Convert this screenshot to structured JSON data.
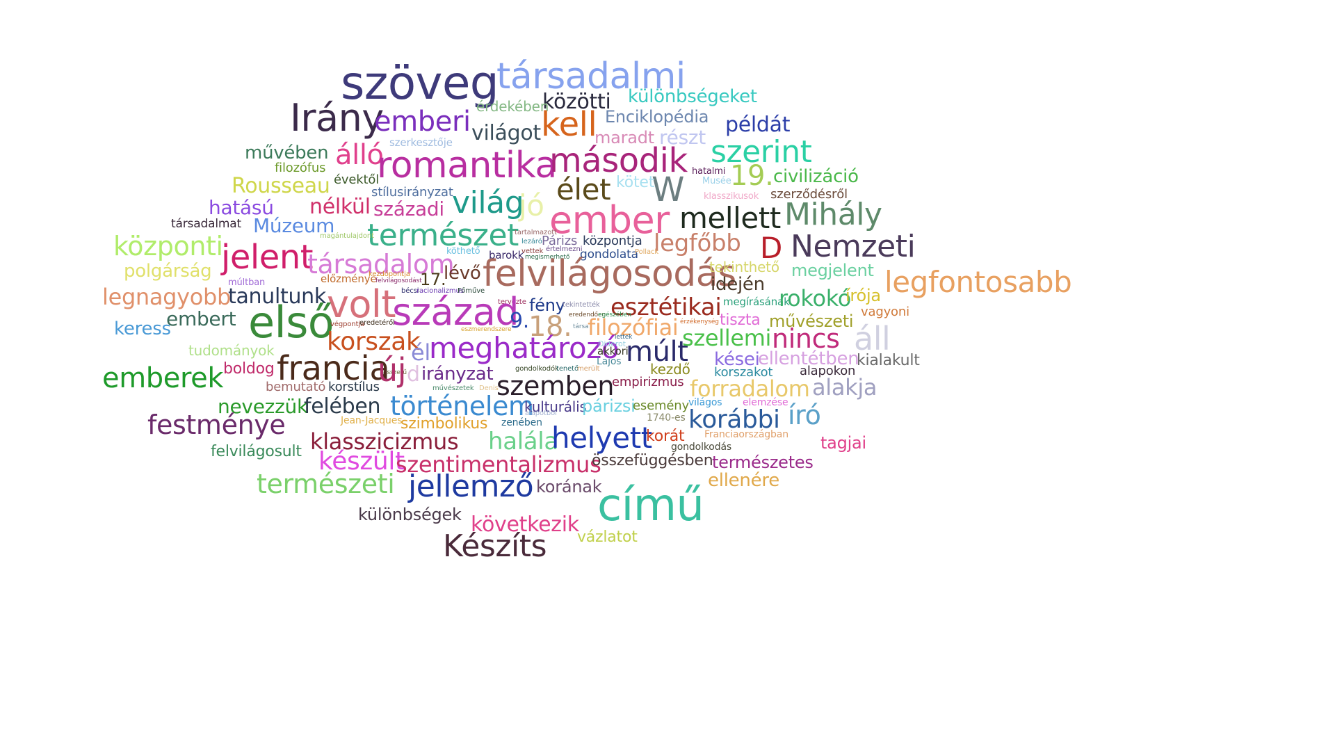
{
  "word_cloud": {
    "words": [
      {
        "text": "szöveg",
        "color": "#3e3a7a"
      },
      {
        "text": "társadalmi",
        "color": "#86a2ee"
      },
      {
        "text": "közötti",
        "color": "#2a2a3e"
      },
      {
        "text": "különbségeket",
        "color": "#38c9c0"
      },
      {
        "text": "érdekében",
        "color": "#84b884"
      },
      {
        "text": "Irány",
        "color": "#3b2a4a"
      },
      {
        "text": "emberi",
        "color": "#7a2ebc"
      },
      {
        "text": "kell",
        "color": "#d6641c"
      },
      {
        "text": "Enciklopédia",
        "color": "#6c86ae"
      },
      {
        "text": "példát",
        "color": "#2c3ea8"
      },
      {
        "text": "világot",
        "color": "#3b4e5a"
      },
      {
        "text": "maradt",
        "color": "#d88ab6"
      },
      {
        "text": "részt",
        "color": "#c0c6f0"
      },
      {
        "text": "szerkesztője",
        "color": "#a0bce0"
      },
      {
        "text": "művében",
        "color": "#3c7a5a"
      },
      {
        "text": "álló",
        "color": "#e0408c"
      },
      {
        "text": "romantika",
        "color": "#b82ea0"
      },
      {
        "text": "második",
        "color": "#a8247a"
      },
      {
        "text": "szerint",
        "color": "#2ad0a4"
      },
      {
        "text": "filozófus",
        "color": "#6c9a2a"
      },
      {
        "text": "évektől",
        "color": "#3c5a2a"
      },
      {
        "text": "hatalmi",
        "color": "#5a1e5a"
      },
      {
        "text": "19.",
        "color": "#a4cc54"
      },
      {
        "text": "civilizáció",
        "color": "#4ab84a"
      },
      {
        "text": "Rousseau",
        "color": "#cfd64a"
      },
      {
        "text": "W",
        "color": "#6c7e80"
      },
      {
        "text": "élet",
        "color": "#5a4a1a"
      },
      {
        "text": "kötet",
        "color": "#a8e0f0"
      },
      {
        "text": "Musée",
        "color": "#9ad0e8"
      },
      {
        "text": "stílusirányzat",
        "color": "#4e6e9e"
      },
      {
        "text": "klasszikusok",
        "color": "#f0a8c8"
      },
      {
        "text": "szerződésről",
        "color": "#6a4a3a"
      },
      {
        "text": "hatású",
        "color": "#8a4ae0"
      },
      {
        "text": "nélkül",
        "color": "#d0306a"
      },
      {
        "text": "századi",
        "color": "#c73e98"
      },
      {
        "text": "világ",
        "color": "#1e9a8a"
      },
      {
        "text": "jó",
        "color": "#e8f0a8"
      },
      {
        "text": "ember",
        "color": "#e8609a"
      },
      {
        "text": "mellett",
        "color": "#1e2a1e"
      },
      {
        "text": "Mihály",
        "color": "#5e8a6a"
      },
      {
        "text": "társadalmat",
        "color": "#3a2a3a"
      },
      {
        "text": "Múzeum",
        "color": "#5a8ae0"
      },
      {
        "text": "természet",
        "color": "#3ab08a"
      },
      {
        "text": "tartalmazott",
        "color": "#9a6a6a"
      },
      {
        "text": "magántulajdont",
        "color": "#a0c86a"
      },
      {
        "text": "lezáró",
        "color": "#3a8a9a"
      },
      {
        "text": "Párizs",
        "color": "#7a6a9a"
      },
      {
        "text": "központja",
        "color": "#2a3a5a"
      },
      {
        "text": "legfőbb",
        "color": "#c8806a"
      },
      {
        "text": "D",
        "color": "#b81e2a"
      },
      {
        "text": "Nemzeti",
        "color": "#4a3a5a"
      },
      {
        "text": "központi",
        "color": "#b0ec6a"
      },
      {
        "text": "jelent",
        "color": "#d01e6a"
      },
      {
        "text": "köthető",
        "color": "#6ac0e0"
      },
      {
        "text": "barokk",
        "color": "#3a2a6a"
      },
      {
        "text": "vettek",
        "color": "#8a3a3a"
      },
      {
        "text": "értelmezni",
        "color": "#6a4a8a"
      },
      {
        "text": "megismerhető",
        "color": "#2a6a4a"
      },
      {
        "text": "gondolata",
        "color": "#2a4a8a"
      },
      {
        "text": "Pollack",
        "color": "#e0a860"
      },
      {
        "text": "társadalom",
        "color": "#d67ad6"
      },
      {
        "text": "felvilágosodás",
        "color": "#a86a5e"
      },
      {
        "text": "tekinthető",
        "color": "#d6d66a"
      },
      {
        "text": "polgárság",
        "color": "#e0e06a"
      },
      {
        "text": "kezdőpontja",
        "color": "#d68a2a"
      },
      {
        "text": "17.",
        "color": "#4a3a1a"
      },
      {
        "text": "lévő",
        "color": "#6a3a2a"
      },
      {
        "text": "megjelent",
        "color": "#6ad0a0"
      },
      {
        "text": "legfontosabb",
        "color": "#e8a060"
      },
      {
        "text": "múltban",
        "color": "#a06ad6"
      },
      {
        "text": "előzménye",
        "color": "#c06a2a"
      },
      {
        "text": "felvilágosodást",
        "color": "#8a2a6a"
      },
      {
        "text": "idején",
        "color": "#4a3a2a"
      },
      {
        "text": "legnagyobb",
        "color": "#e0906a"
      },
      {
        "text": "tanultunk",
        "color": "#2a3a5a"
      },
      {
        "text": "volt",
        "color": "#d6707a"
      },
      {
        "text": "bécsi",
        "color": "#2a2a6a"
      },
      {
        "text": "racionalizmus",
        "color": "#6a3ab0"
      },
      {
        "text": "Főműve",
        "color": "#2a4a3a"
      },
      {
        "text": "esztétikai",
        "color": "#9a2a1e"
      },
      {
        "text": "megírásának",
        "color": "#2aa07a"
      },
      {
        "text": "rokokó",
        "color": "#3ab06a"
      },
      {
        "text": "írója",
        "color": "#d6c02a"
      },
      {
        "text": "tervezte",
        "color": "#9a2a5a"
      },
      {
        "text": "fény",
        "color": "#1e3a8a"
      },
      {
        "text": "tekintették",
        "color": "#8a8aaa"
      },
      {
        "text": "keress",
        "color": "#4a9ad6"
      },
      {
        "text": "embert",
        "color": "#3a6a5a"
      },
      {
        "text": "első",
        "color": "#3a8a3a"
      },
      {
        "text": "század",
        "color": "#b83ab8"
      },
      {
        "text": "9.",
        "color": "#2a4ab0"
      },
      {
        "text": "18.",
        "color": "#c8a07a"
      },
      {
        "text": "eredendően",
        "color": "#6a4a2a"
      },
      {
        "text": "egészében",
        "color": "#2a8a4a"
      },
      {
        "text": "filozófiai",
        "color": "#f0a86a"
      },
      {
        "text": "érzékenység",
        "color": "#d06a2a"
      },
      {
        "text": "tiszta",
        "color": "#e06ad6"
      },
      {
        "text": "művészeti",
        "color": "#a0a02a"
      },
      {
        "text": "vagyoni",
        "color": "#d07a3a"
      },
      {
        "text": "végpontja",
        "color": "#9a3a2a"
      },
      {
        "text": "eredetéről",
        "color": "#3a2a1a"
      },
      {
        "text": "ésszerű",
        "color": "#6a6a3a"
      },
      {
        "text": "társa",
        "color": "#6a8a9a"
      },
      {
        "text": "eszmerendszere",
        "color": "#d6a02a"
      },
      {
        "text": "lettek",
        "color": "#3a6a8a"
      },
      {
        "text": "korszak",
        "color": "#c8501e"
      },
      {
        "text": "él",
        "color": "#8a8ad6"
      },
      {
        "text": "meghatározó",
        "color": "#9a2ac8"
      },
      {
        "text": "Diderot",
        "color": "#9ad0e0"
      },
      {
        "text": "akkori",
        "color": "#3a3a2a"
      },
      {
        "text": "Lajos",
        "color": "#4a8a9a"
      },
      {
        "text": "múlt",
        "color": "#2a2a6a"
      },
      {
        "text": "szellemi",
        "color": "#4ac04a"
      },
      {
        "text": "nincs",
        "color": "#c02a7a"
      },
      {
        "text": "áll",
        "color": "#d0d0e0"
      },
      {
        "text": "tudományok",
        "color": "#b0e08a"
      },
      {
        "text": "francia",
        "color": "#4a2a1a"
      },
      {
        "text": "új",
        "color": "#b0306a"
      },
      {
        "text": "d",
        "color": "#e0c0e0"
      },
      {
        "text": "irányzat",
        "color": "#6a2a8a"
      },
      {
        "text": "gondolkodók",
        "color": "#3a4a2a"
      },
      {
        "text": "tenető",
        "color": "#2a6a6a"
      },
      {
        "text": "merült",
        "color": "#d6a06a"
      },
      {
        "text": "kezdő",
        "color": "#8a8a1e"
      },
      {
        "text": "kései",
        "color": "#8a6ae0"
      },
      {
        "text": "ellentétben",
        "color": "#d6a0e0"
      },
      {
        "text": "kialakult",
        "color": "#6a6a6a"
      },
      {
        "text": "boldog",
        "color": "#c02a6a"
      },
      {
        "text": "emberek",
        "color": "#1e9a2a"
      },
      {
        "text": "szemben",
        "color": "#2a1e2a"
      },
      {
        "text": "empirizmus",
        "color": "#8a1e4a"
      },
      {
        "text": "korszakot",
        "color": "#2a8aa0"
      },
      {
        "text": "alapokon",
        "color": "#3a2a3a"
      },
      {
        "text": "bemutató",
        "color": "#a06a6a"
      },
      {
        "text": "korstílus",
        "color": "#2a3a4a"
      },
      {
        "text": "művészetek",
        "color": "#4a8a6a"
      },
      {
        "text": "Denis",
        "color": "#e0c08a"
      },
      {
        "text": "forradalom",
        "color": "#e8c86a"
      },
      {
        "text": "alakja",
        "color": "#a0a0c0"
      },
      {
        "text": "nevezzük",
        "color": "#2a9a2a"
      },
      {
        "text": "felében",
        "color": "#2a3a4a"
      },
      {
        "text": "történelem",
        "color": "#3a8ad0"
      },
      {
        "text": "kulturális",
        "color": "#4a3a8a"
      },
      {
        "text": "párizsi",
        "color": "#6ad0e0"
      },
      {
        "text": "esemény",
        "color": "#6a8a2a"
      },
      {
        "text": "világos",
        "color": "#3a9ad6"
      },
      {
        "text": "elemzése",
        "color": "#e06ad6"
      },
      {
        "text": "író",
        "color": "#5aa0c8"
      },
      {
        "text": "festménye",
        "color": "#6a2a6a"
      },
      {
        "text": "Jean-Jacques",
        "color": "#e0b04a"
      },
      {
        "text": "szimbolikus",
        "color": "#e0a02a"
      },
      {
        "text": "zenében",
        "color": "#2a6a8a"
      },
      {
        "text": "alapotból",
        "color": "#a0b0d0"
      },
      {
        "text": "1740-es",
        "color": "#8a8a6a"
      },
      {
        "text": "korábbi",
        "color": "#2a5a9a"
      },
      {
        "text": "klasszicizmus",
        "color": "#8a1e3a"
      },
      {
        "text": "halála",
        "color": "#6ad08a"
      },
      {
        "text": "helyett",
        "color": "#1e3ab0"
      },
      {
        "text": "korát",
        "color": "#d0401e"
      },
      {
        "text": "Franciaországban",
        "color": "#e0a06a"
      },
      {
        "text": "tagjai",
        "color": "#e0408a"
      },
      {
        "text": "felvilágosult",
        "color": "#3a8a5a"
      },
      {
        "text": "gondolkodás",
        "color": "#4a4a3a"
      },
      {
        "text": "készült",
        "color": "#e04ae0"
      },
      {
        "text": "szentimentalizmus",
        "color": "#c8306a"
      },
      {
        "text": "összefüggésben",
        "color": "#4a3a3a"
      },
      {
        "text": "természetes",
        "color": "#9a2a8a"
      },
      {
        "text": "természeti",
        "color": "#7ad06a"
      },
      {
        "text": "jellemző",
        "color": "#1e3aa0"
      },
      {
        "text": "ellenére",
        "color": "#e0a84a"
      },
      {
        "text": "című",
        "color": "#3ac0a0"
      },
      {
        "text": "korának",
        "color": "#6a4a6a"
      },
      {
        "text": "különbségek",
        "color": "#4a3a4a"
      },
      {
        "text": "következik",
        "color": "#e0408a"
      },
      {
        "text": "vázlatot",
        "color": "#c0d04a"
      },
      {
        "text": "Készíts",
        "color": "#4a2a3a"
      }
    ]
  }
}
